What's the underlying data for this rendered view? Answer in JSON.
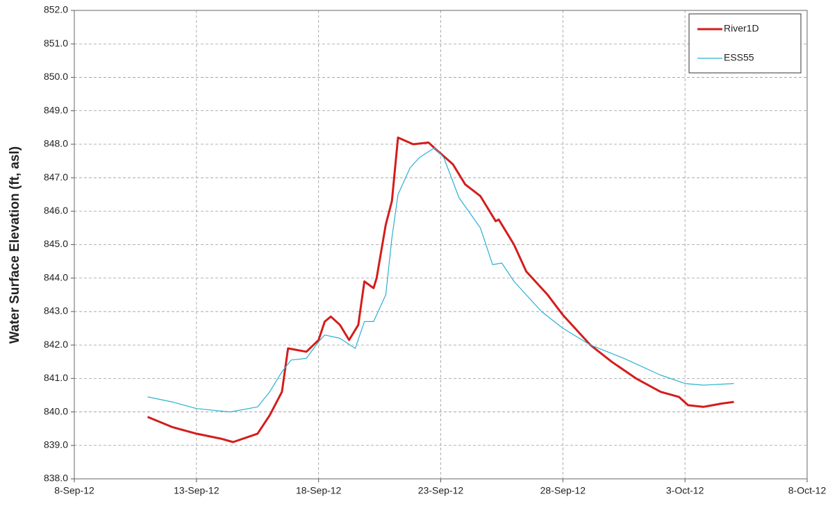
{
  "chart_data": {
    "type": "line",
    "y_label": "Water Surface Elevation (ft, asl)",
    "xlim": [
      "2012-09-08T00:00",
      "2012-10-08T00:00"
    ],
    "xticks": [
      {
        "value": "2012-09-08T00:00",
        "label": "8-Sep-12"
      },
      {
        "value": "2012-09-13T00:00",
        "label": "13-Sep-12"
      },
      {
        "value": "2012-09-18T00:00",
        "label": "18-Sep-12"
      },
      {
        "value": "2012-09-23T00:00",
        "label": "23-Sep-12"
      },
      {
        "value": "2012-09-28T00:00",
        "label": "28-Sep-12"
      },
      {
        "value": "2012-10-03T00:00",
        "label": "3-Oct-12"
      },
      {
        "value": "2012-10-08T00:00",
        "label": "8-Oct-12"
      }
    ],
    "ylim": [
      838,
      852
    ],
    "yticks": [
      {
        "value": 838,
        "label": "838.0"
      },
      {
        "value": 839,
        "label": "839.0"
      },
      {
        "value": 840,
        "label": "840.0"
      },
      {
        "value": 841,
        "label": "841.0"
      },
      {
        "value": 842,
        "label": "842.0"
      },
      {
        "value": 843,
        "label": "843.0"
      },
      {
        "value": 844,
        "label": "844.0"
      },
      {
        "value": 845,
        "label": "845.0"
      },
      {
        "value": 846,
        "label": "846.0"
      },
      {
        "value": 847,
        "label": "847.0"
      },
      {
        "value": 848,
        "label": "848.0"
      },
      {
        "value": 849,
        "label": "849.0"
      },
      {
        "value": 850,
        "label": "850.0"
      },
      {
        "value": 851,
        "label": "851.0"
      },
      {
        "value": 852,
        "label": "852.0"
      }
    ],
    "grid": true,
    "legend": "upper right",
    "series": [
      {
        "name": "River1D",
        "color": "#d41c1c",
        "width": 3,
        "x": [
          "2012-09-11T00:00",
          "2012-09-12T00:00",
          "2012-09-13T00:00",
          "2012-09-14T00:00",
          "2012-09-14T12:00",
          "2012-09-15T12:00",
          "2012-09-16T00:00",
          "2012-09-16T12:00",
          "2012-09-16T18:00",
          "2012-09-17T12:00",
          "2012-09-18T00:00",
          "2012-09-18T06:00",
          "2012-09-18T12:00",
          "2012-09-18T21:00",
          "2012-09-19T06:00",
          "2012-09-19T15:00",
          "2012-09-19T21:00",
          "2012-09-20T06:00",
          "2012-09-20T09:00",
          "2012-09-20T18:00",
          "2012-09-21T00:00",
          "2012-09-21T06:00",
          "2012-09-21T21:00",
          "2012-09-22T12:00",
          "2012-09-22T21:00",
          "2012-09-23T12:00",
          "2012-09-24T00:00",
          "2012-09-24T15:00",
          "2012-09-25T06:00",
          "2012-09-25T09:00",
          "2012-09-26T00:00",
          "2012-09-26T12:00",
          "2012-09-27T09:00",
          "2012-09-28T00:00",
          "2012-09-29T03:00",
          "2012-09-30T00:00",
          "2012-10-01T00:00",
          "2012-10-02T00:00",
          "2012-10-02T18:00",
          "2012-10-03T03:00",
          "2012-10-03T18:00",
          "2012-10-04T12:00",
          "2012-10-05T00:00"
        ],
        "values": [
          839.85,
          839.55,
          839.35,
          839.2,
          839.1,
          839.35,
          839.9,
          840.6,
          841.9,
          841.8,
          842.15,
          842.7,
          842.85,
          842.6,
          842.15,
          842.6,
          843.9,
          843.7,
          844.0,
          845.6,
          846.3,
          848.2,
          848.0,
          848.05,
          847.8,
          847.4,
          846.8,
          846.45,
          845.7,
          845.75,
          845.0,
          844.2,
          843.5,
          842.9,
          842.0,
          841.5,
          841.0,
          840.6,
          840.45,
          840.2,
          840.15,
          840.25,
          840.3
        ]
      },
      {
        "name": "ESS55",
        "color": "#2ab0d0",
        "width": 1.2,
        "x": [
          "2012-09-11T00:00",
          "2012-09-12T00:00",
          "2012-09-13T00:00",
          "2012-09-14T09:00",
          "2012-09-15T12:00",
          "2012-09-16T00:00",
          "2012-09-16T12:00",
          "2012-09-16T21:00",
          "2012-09-17T12:00",
          "2012-09-18T00:00",
          "2012-09-18T06:00",
          "2012-09-18T21:00",
          "2012-09-19T12:00",
          "2012-09-19T21:00",
          "2012-09-20T06:00",
          "2012-09-20T18:00",
          "2012-09-21T00:00",
          "2012-09-21T06:00",
          "2012-09-21T18:00",
          "2012-09-22T03:00",
          "2012-09-22T18:00",
          "2012-09-23T03:00",
          "2012-09-23T18:00",
          "2012-09-24T15:00",
          "2012-09-25T03:00",
          "2012-09-25T12:00",
          "2012-09-26T00:00",
          "2012-09-27T03:00",
          "2012-09-28T00:00",
          "2012-09-29T03:00",
          "2012-09-30T12:00",
          "2012-10-02T00:00",
          "2012-10-03T00:00",
          "2012-10-03T18:00",
          "2012-10-05T00:00"
        ],
        "values": [
          840.45,
          840.3,
          840.1,
          840.0,
          840.15,
          840.6,
          841.2,
          841.55,
          841.6,
          842.1,
          842.3,
          842.2,
          841.9,
          842.7,
          842.7,
          843.5,
          845.2,
          846.5,
          847.3,
          847.6,
          847.9,
          847.6,
          846.4,
          845.5,
          844.4,
          844.45,
          843.9,
          843.0,
          842.5,
          842.0,
          841.6,
          841.1,
          840.85,
          840.8,
          840.85
        ]
      }
    ]
  }
}
